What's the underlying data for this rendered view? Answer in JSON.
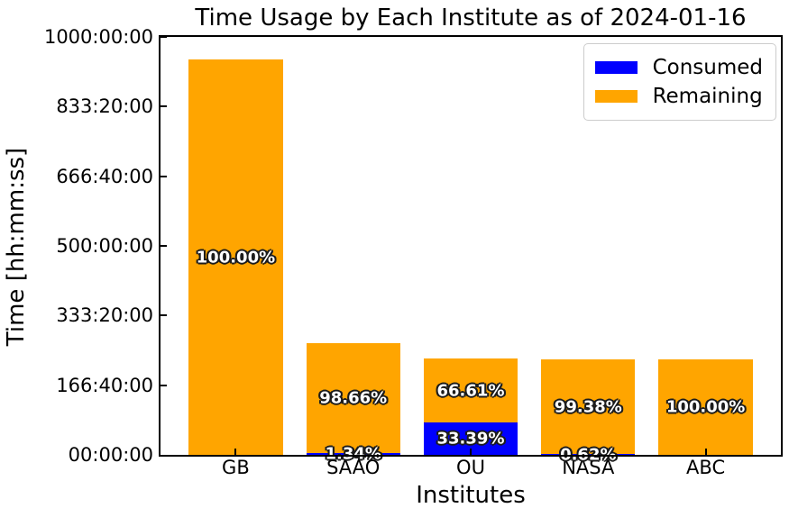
{
  "chart_data": {
    "type": "stacked_bar",
    "title": "Time Usage by Each Institute as of 2024-01-16",
    "xlabel": "Institutes",
    "ylabel": "Time [hh:mm:ss]",
    "categories": [
      "GB",
      "SAAO",
      "OU",
      "NASA",
      "ABC"
    ],
    "series": [
      {
        "name": "Consumed",
        "color": "#0000ff",
        "values_hours": [
          0,
          3.58,
          76.96,
          1.42,
          0
        ],
        "pct_labels": [
          "",
          "1.34%",
          "33.39%",
          "0.62%",
          ""
        ]
      },
      {
        "name": "Remaining",
        "color": "#ffa500",
        "values_hours": [
          946,
          263.42,
          153.54,
          227.58,
          229.5
        ],
        "pct_labels": [
          "100.00%",
          "98.66%",
          "66.61%",
          "99.38%",
          "100.00%"
        ]
      }
    ],
    "totals_hours": [
      946,
      267,
      230.5,
      229,
      229.5
    ],
    "ylim_hours": [
      0,
      1000
    ],
    "ytick_labels": [
      "00:00:00",
      "166:40:00",
      "333:20:00",
      "500:00:00",
      "666:40:00",
      "833:20:00",
      "1000:00:00"
    ],
    "bar_width_fraction": 0.8,
    "axis_margin_fraction": 0.05,
    "grid": false,
    "tick_direction": "in",
    "legend": {
      "position": "upper-right",
      "entries": [
        {
          "label": "Consumed",
          "color": "#0000ff"
        },
        {
          "label": "Remaining",
          "color": "#ffa500"
        }
      ]
    }
  },
  "colors": {
    "consumed": "#0000ff",
    "remaining": "#ffa500",
    "axis": "#000000",
    "background": "#ffffff",
    "pct_text": "#ffffff",
    "pct_outline": "#1c1c1c",
    "legend_border": "#cccccc"
  }
}
